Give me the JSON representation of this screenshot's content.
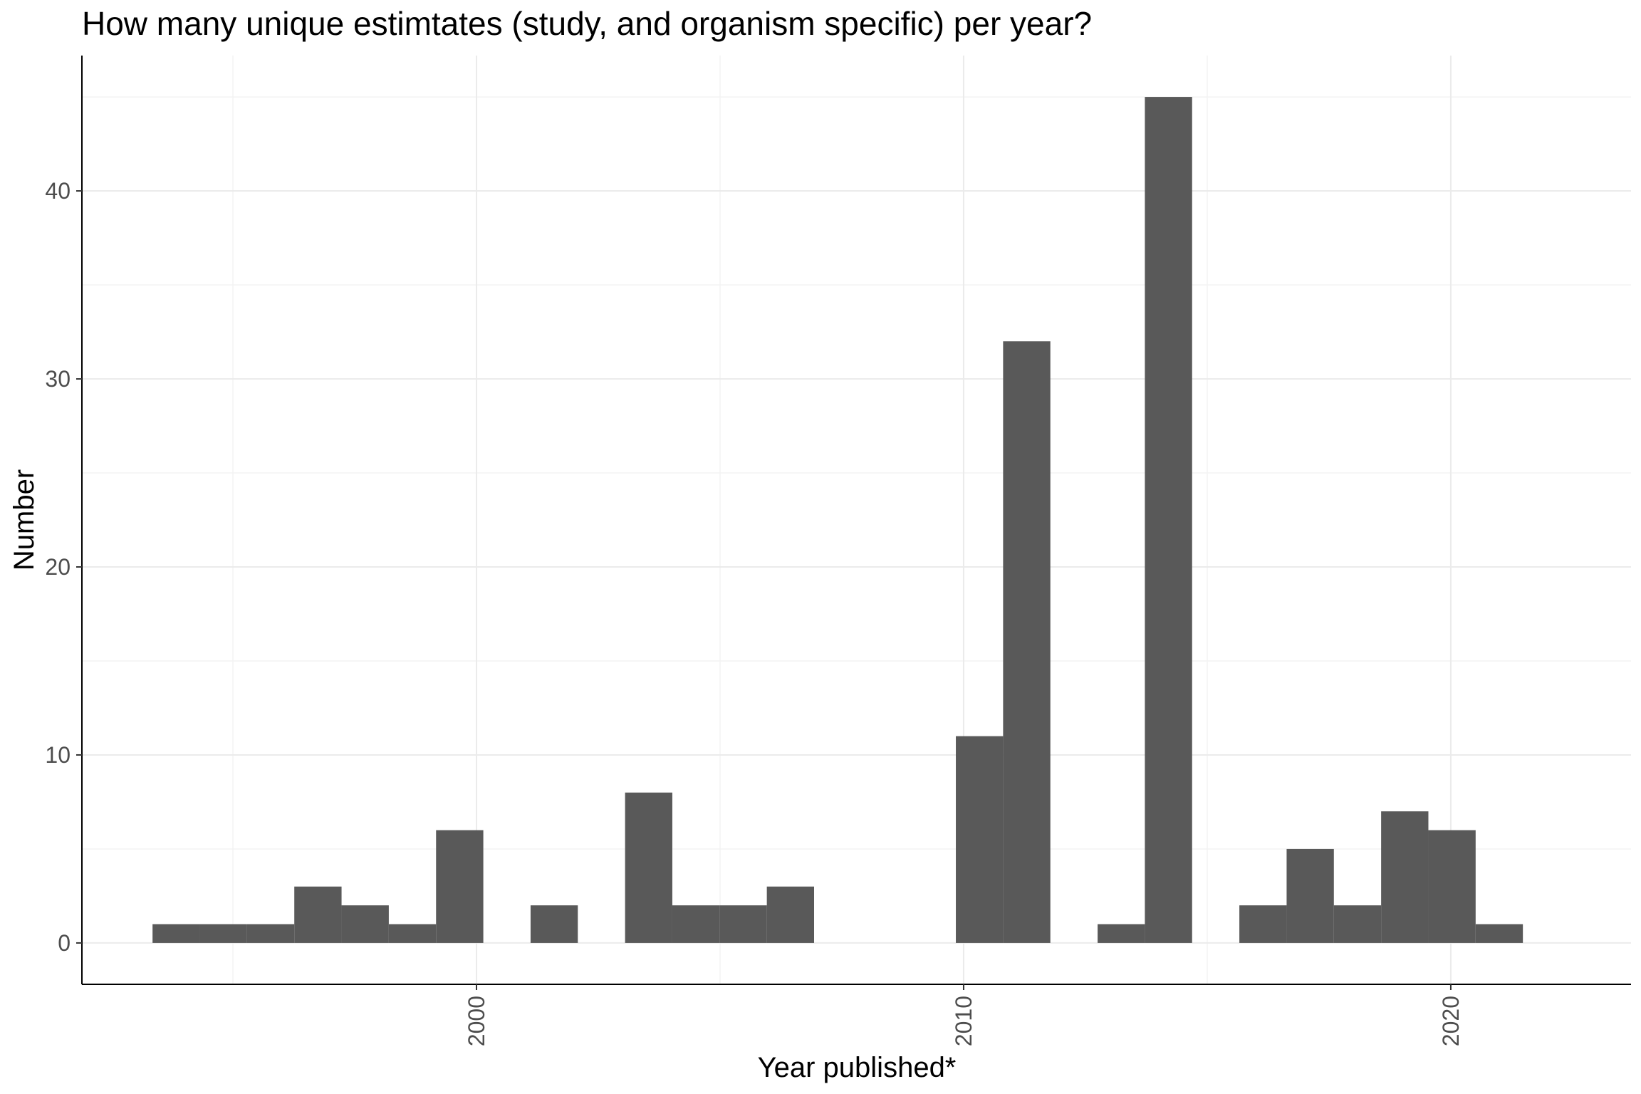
{
  "chart_data": {
    "type": "bar",
    "title": "How many unique estimtates (study, and organism specific) per year?",
    "xlabel": "Year published*",
    "ylabel": "Number",
    "bar_color": "#595959",
    "xlim": [
      1991.9,
      2023.7
    ],
    "ylim": [
      -2.2,
      47.2
    ],
    "x_ticks": [
      2000,
      2010,
      2020
    ],
    "y_ticks": [
      0,
      10,
      20,
      30,
      40
    ],
    "grid": true,
    "bin_width": 0.97,
    "bins": [
      {
        "start": 1993.35,
        "value": 1
      },
      {
        "start": 1994.32,
        "value": 1
      },
      {
        "start": 1995.29,
        "value": 1
      },
      {
        "start": 1996.26,
        "value": 3
      },
      {
        "start": 1997.23,
        "value": 2
      },
      {
        "start": 1998.2,
        "value": 1
      },
      {
        "start": 1999.17,
        "value": 6
      },
      {
        "start": 2001.11,
        "value": 2
      },
      {
        "start": 2003.05,
        "value": 8
      },
      {
        "start": 2004.02,
        "value": 2
      },
      {
        "start": 2004.99,
        "value": 2
      },
      {
        "start": 2005.96,
        "value": 3
      },
      {
        "start": 2009.84,
        "value": 11
      },
      {
        "start": 2010.81,
        "value": 32
      },
      {
        "start": 2012.75,
        "value": 1
      },
      {
        "start": 2013.72,
        "value": 45
      },
      {
        "start": 2015.66,
        "value": 2
      },
      {
        "start": 2016.63,
        "value": 5
      },
      {
        "start": 2017.6,
        "value": 2
      },
      {
        "start": 2018.57,
        "value": 7
      },
      {
        "start": 2019.54,
        "value": 6
      },
      {
        "start": 2020.51,
        "value": 1
      }
    ]
  }
}
